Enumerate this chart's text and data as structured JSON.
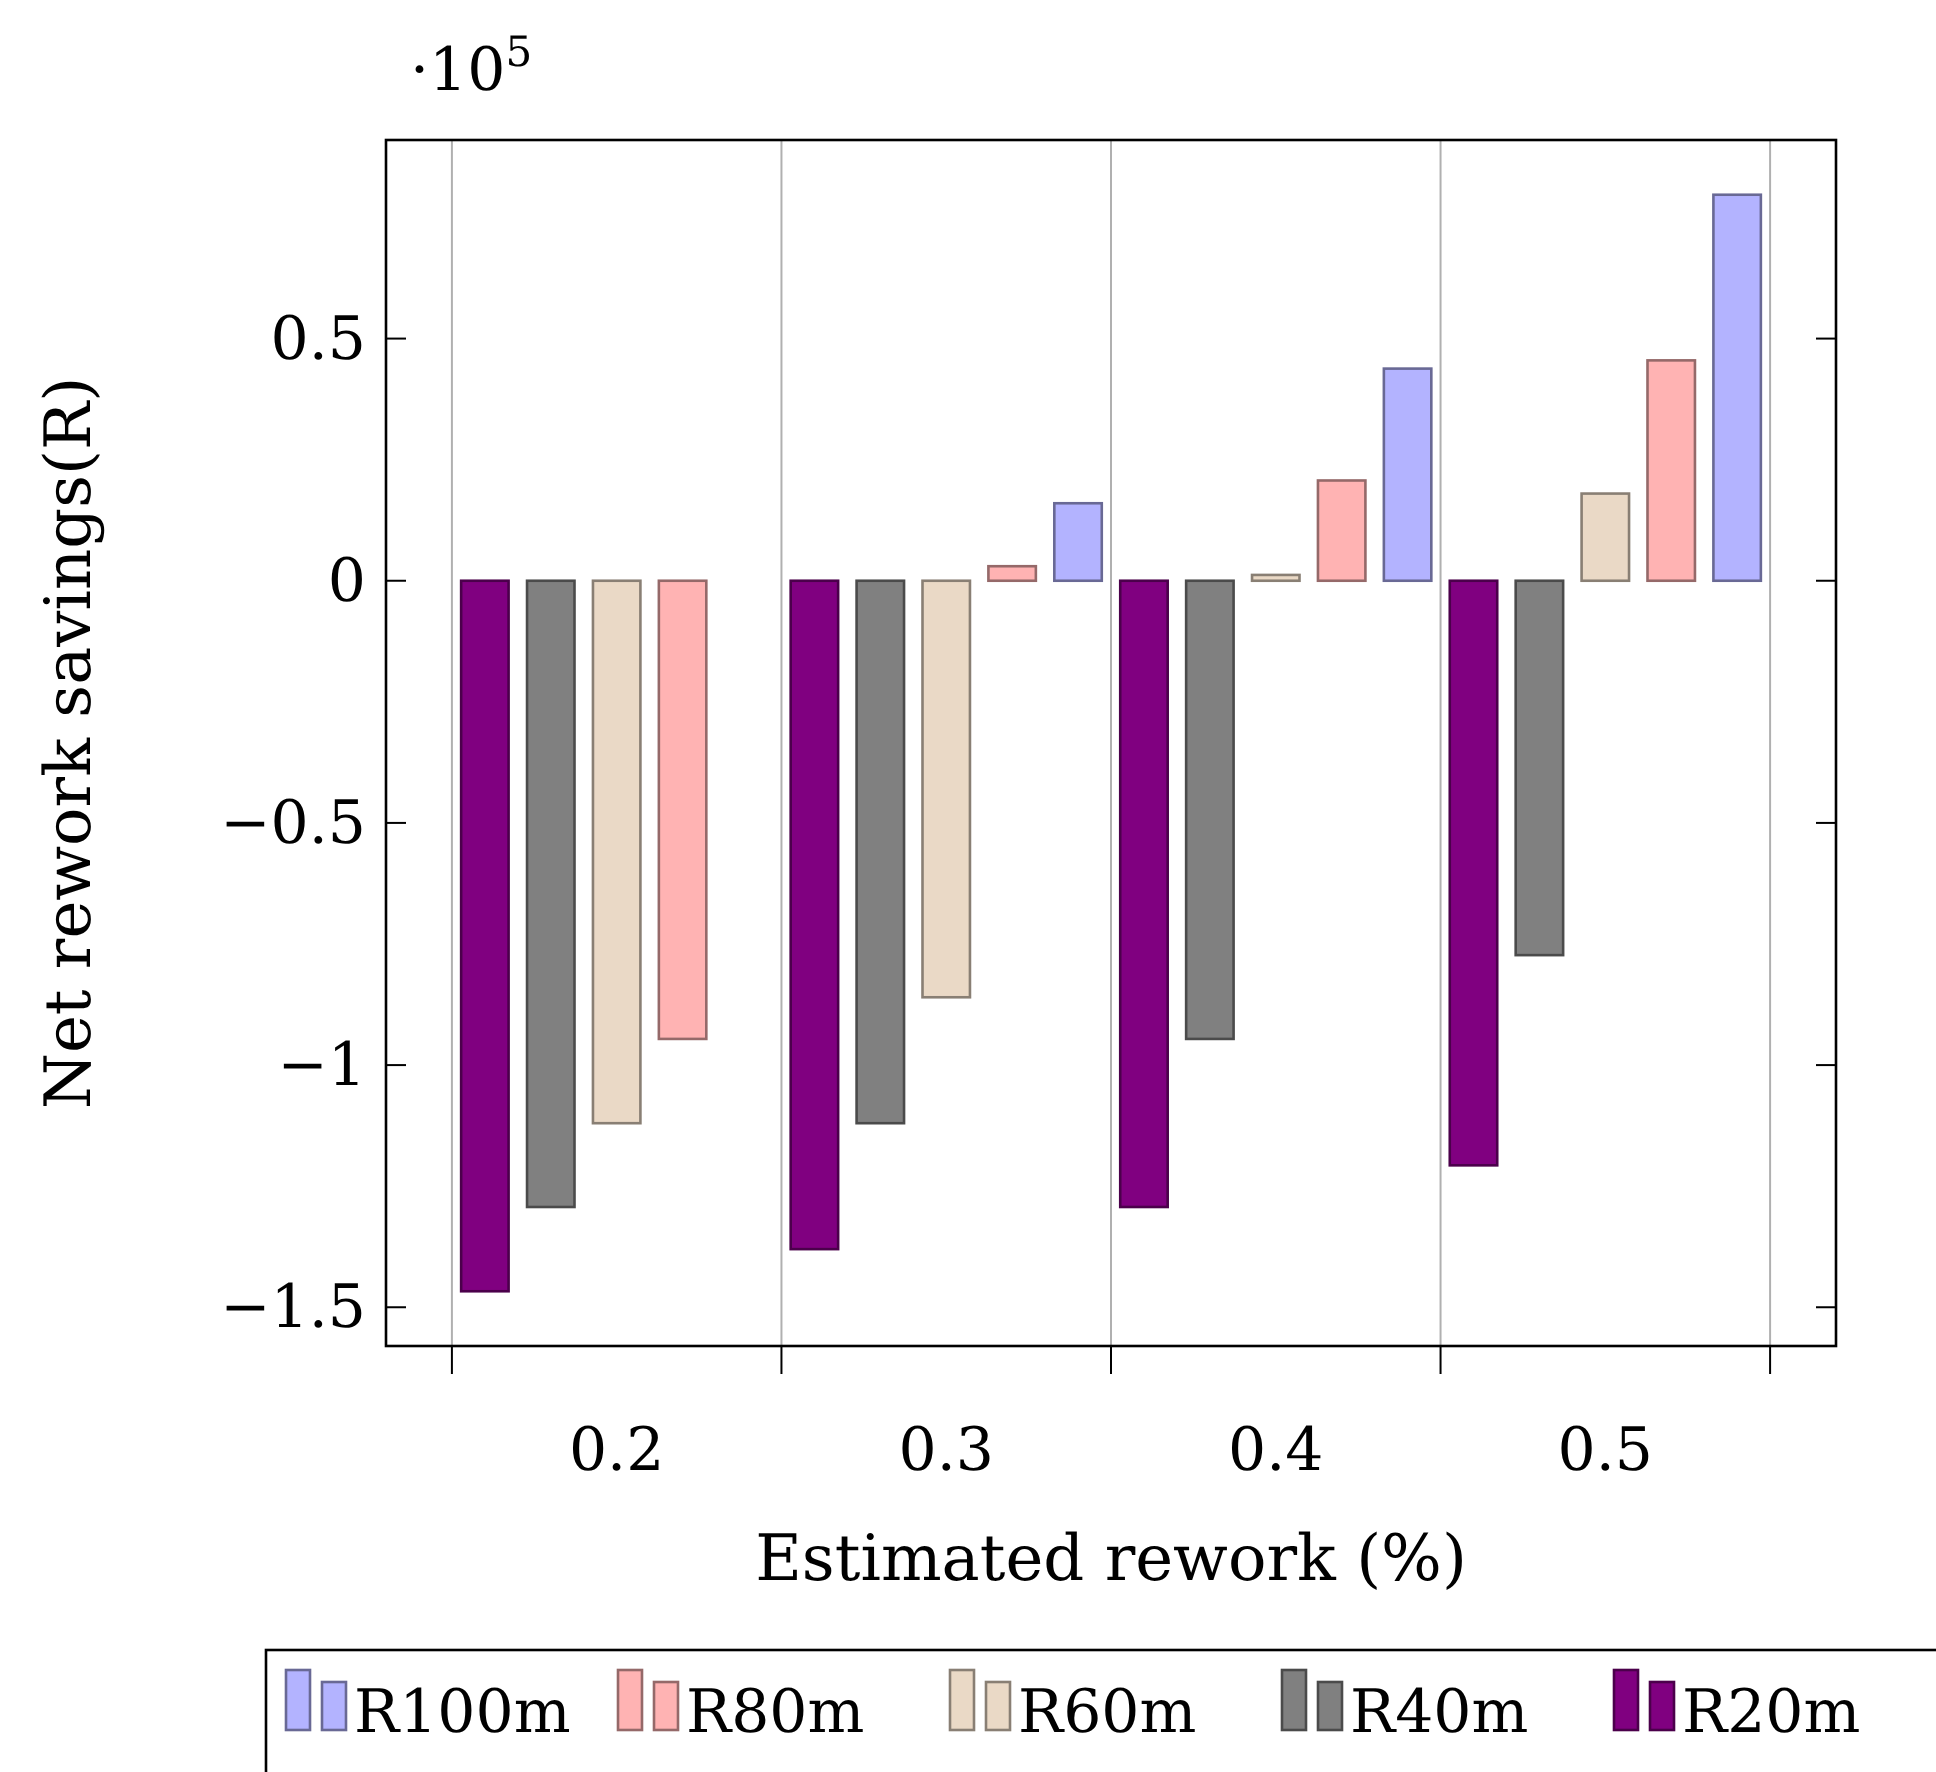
{
  "chart_data": {
    "type": "bar",
    "xlabel": "Estimated rework (%)",
    "ylabel": "Net rework savings(R)",
    "annotations": [
      "·10$^{5}$"
    ],
    "x": [
      0.2,
      0.3,
      0.4,
      0.5
    ],
    "series": [
      {
        "name": "R100m",
        "color": "#b3b3ff",
        "values": [
          0.0,
          0.16,
          0.438,
          0.797
        ]
      },
      {
        "name": "R80m",
        "color": "#ffb3b3",
        "values": [
          -0.946,
          0.03,
          0.207,
          0.455
        ]
      },
      {
        "name": "R60m",
        "color": "#ead9c6",
        "values": [
          -1.12,
          -0.86,
          0.012,
          0.18
        ]
      },
      {
        "name": "R40m",
        "color": "#808080",
        "values": [
          -1.293,
          -1.12,
          -0.946,
          -0.773
        ]
      },
      {
        "name": "R20m",
        "color": "#800080",
        "values": [
          -1.467,
          -1.38,
          -1.293,
          -1.207
        ]
      }
    ],
    "xlim": [
      0.13,
      0.57
    ],
    "xticks": [
      {
        "value": 0.15,
        "label": null
      },
      {
        "value": 0.2,
        "label": "0.2"
      },
      {
        "value": 0.25,
        "label": null
      },
      {
        "value": 0.3,
        "label": "0.3"
      },
      {
        "value": 0.35,
        "label": null
      },
      {
        "value": 0.4,
        "label": "0.4"
      },
      {
        "value": 0.45,
        "label": null
      },
      {
        "value": 0.5,
        "label": "0.5"
      },
      {
        "value": 0.55,
        "label": null
      }
    ],
    "ylim": [
      -1.58,
      0.91
    ],
    "yticks": [
      {
        "value": -1.5,
        "label": "−1.5"
      },
      {
        "value": -1,
        "label": "−1"
      },
      {
        "value": -0.5,
        "label": "−0.5"
      },
      {
        "value": 0,
        "label": "0"
      },
      {
        "value": 0.5,
        "label": "0.5"
      }
    ],
    "grid": "x",
    "legend": "bottom"
  }
}
